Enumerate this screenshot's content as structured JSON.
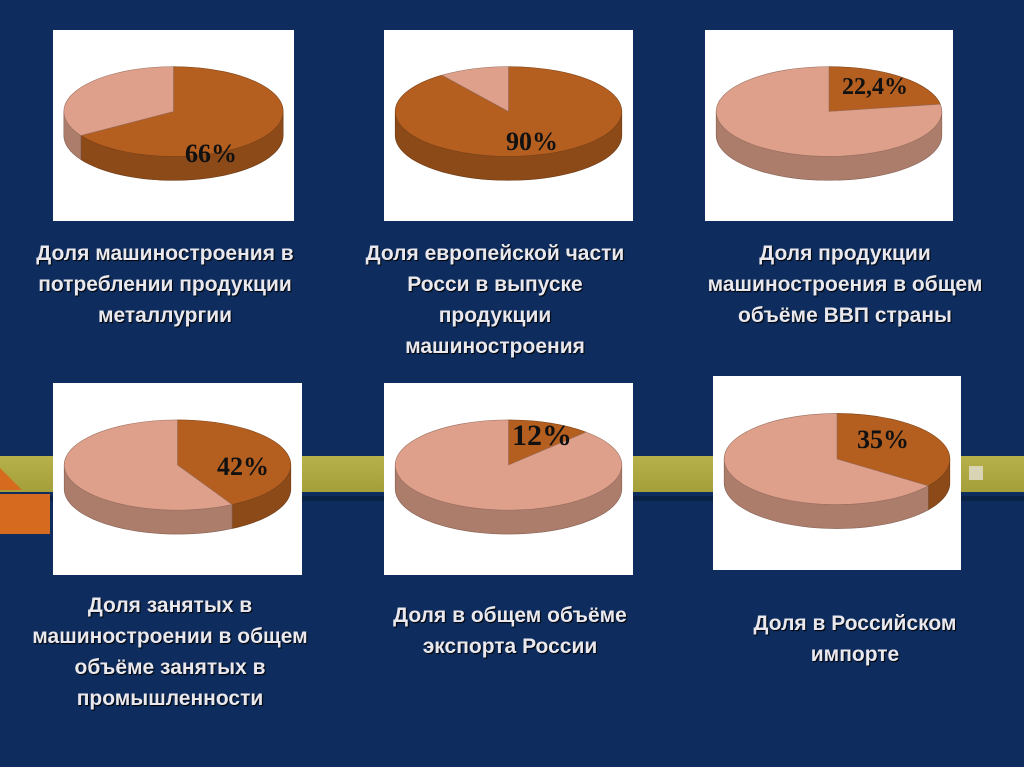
{
  "chart_data": [
    {
      "type": "pie",
      "title": "Доля машиностроения в потреблении продукции металлургии",
      "values": [
        66
      ],
      "label": "66%",
      "colors": {
        "main": "#b45f20",
        "rest": "#dea08a"
      }
    },
    {
      "type": "pie",
      "title": "Доля европейской части Росси в выпуске продукции машиностроения",
      "values": [
        90
      ],
      "label": "90%",
      "colors": {
        "main": "#b45f20",
        "rest": "#dea08a"
      }
    },
    {
      "type": "pie",
      "title": "Доля продукции машиностроения в общем объёме ВВП страны",
      "values": [
        22.4
      ],
      "label": "22,4%",
      "colors": {
        "main": "#b45f20",
        "rest": "#dea08a"
      }
    },
    {
      "type": "pie",
      "title": "Доля занятых в машиностроении в общем объёме занятых в промышленности",
      "values": [
        42
      ],
      "label": "42%",
      "colors": {
        "main": "#b45f20",
        "rest": "#dea08a"
      }
    },
    {
      "type": "pie",
      "title": "Доля в общем объёме экспорта России",
      "values": [
        12
      ],
      "label": "12%",
      "colors": {
        "main": "#b45f20",
        "rest": "#dea08a"
      }
    },
    {
      "type": "pie",
      "title": "Доля в Российском импорте",
      "values": [
        35
      ],
      "label": "35%",
      "colors": {
        "main": "#b45f20",
        "rest": "#dea08a"
      }
    }
  ],
  "captions": [
    [
      "Доля машиностроения в",
      "потреблении продукции",
      "металлургии"
    ],
    [
      "Доля европейской части",
      "Росси в выпуске",
      "продукции",
      "машиностроения"
    ],
    [
      "Доля продукции",
      "машиностроения в общем",
      "объёме ВВП страны"
    ],
    [
      "Доля занятых в",
      "машиностроении в общем",
      "объёме занятых в",
      "промышленности"
    ],
    [
      "Доля в общем объёме",
      "экспорта России"
    ],
    [
      "Доля в Российском",
      "импорте"
    ]
  ]
}
